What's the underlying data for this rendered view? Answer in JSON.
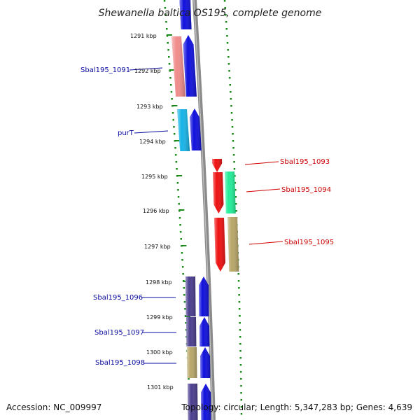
{
  "title": "Shewanella baltica OS195, complete genome",
  "footer": {
    "accession": "Accession: NC_009997",
    "summary": "Topology: circular; Length: 5,347,283 bp; Genes: 4,639"
  },
  "ruler": {
    "unit": "kbp",
    "ticks": [
      "1291 kbp",
      "1292 kbp",
      "1293 kbp",
      "1294 kbp",
      "1295 kbp",
      "1296 kbp",
      "1297 kbp",
      "1298 kbp",
      "1299 kbp",
      "1300 kbp",
      "1301 kbp"
    ]
  },
  "colors": {
    "forward_strand": "#1010dd",
    "reverse_strand": "#ee1111",
    "forward_label": "#0a0aa0",
    "reverse_label": "#cc0000",
    "backbone": "#8a8a8a",
    "dotted_guide": "#1a8a1a"
  },
  "genes": [
    {
      "name": "Sbal195_1091",
      "strand": "forward",
      "side": "left",
      "cog_color": "#f08c8c"
    },
    {
      "name": "purT",
      "strand": "forward",
      "side": "left",
      "cog_color": "#18b4e8"
    },
    {
      "name": "Sbal195_1093",
      "strand": "reverse",
      "side": "right",
      "cog_color": ""
    },
    {
      "name": "Sbal195_1094",
      "strand": "reverse",
      "side": "right",
      "cog_color": "#22ee99"
    },
    {
      "name": "Sbal195_1095",
      "strand": "reverse",
      "side": "right",
      "cog_color": "#b8a668"
    },
    {
      "name": "Sbal195_1096",
      "strand": "forward",
      "side": "left",
      "cog_color": "#4a3e8e"
    },
    {
      "name": "Sbal195_1097",
      "strand": "forward",
      "side": "left",
      "cog_color": "#4a3e8e"
    },
    {
      "name": "Sbal195_1098",
      "strand": "forward",
      "side": "left",
      "cog_color": "#b8a668"
    }
  ]
}
